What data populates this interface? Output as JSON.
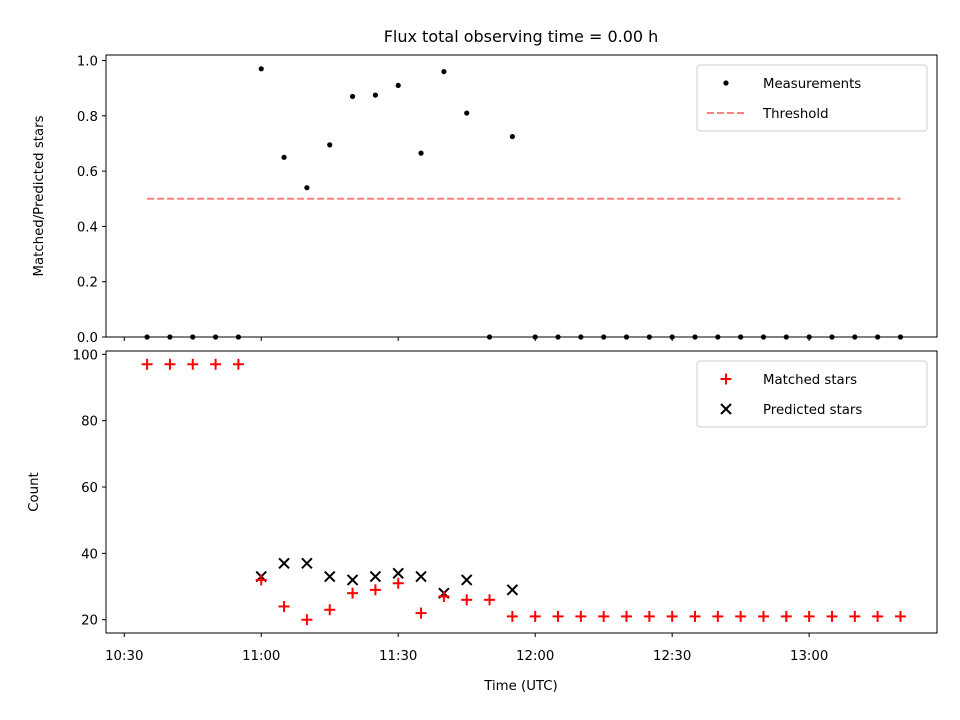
{
  "chart_data": {
    "title": "Flux total observing time = 0.00 h",
    "xlabel": "Time (UTC)",
    "xticks": [
      "10:30",
      "11:00",
      "11:30",
      "12:00",
      "12:30",
      "13:00"
    ],
    "x": [
      "10:35",
      "10:40",
      "10:45",
      "10:50",
      "10:55",
      "11:00",
      "11:05",
      "11:10",
      "11:15",
      "11:20",
      "11:25",
      "11:30",
      "11:35",
      "11:40",
      "11:45",
      "11:50",
      "11:55",
      "12:00",
      "12:05",
      "12:10",
      "12:15",
      "12:20",
      "12:25",
      "12:30",
      "12:35",
      "12:40",
      "12:45",
      "12:50",
      "12:55",
      "13:00",
      "13:05",
      "13:10",
      "13:15",
      "13:20"
    ],
    "xlim": [
      "10:26",
      "13:28"
    ],
    "panels": [
      {
        "type": "scatter",
        "ylabel": "Matched/Predicted stars",
        "ylim": [
          0,
          1.02
        ],
        "yticks": [
          "0.0",
          "0.2",
          "0.4",
          "0.6",
          "0.8",
          "1.0"
        ],
        "legend_position": "top-right",
        "series": [
          {
            "name": "Measurements",
            "marker": "dot",
            "color": "#000000",
            "values": [
              0,
              0,
              0,
              0,
              0,
              0.97,
              0.65,
              0.54,
              0.695,
              0.87,
              0.875,
              0.91,
              0.665,
              0.96,
              0.81,
              0,
              0.725,
              0,
              0,
              0,
              0,
              0,
              0,
              0,
              0,
              0,
              0,
              0,
              0,
              0,
              0,
              0,
              0,
              0
            ]
          },
          {
            "name": "Threshold",
            "style": "dashed",
            "color": "#ff7f7f",
            "x_range": [
              "10:35",
              "13:20"
            ],
            "value": 0.5
          }
        ]
      },
      {
        "type": "scatter",
        "ylabel": "Count",
        "ylim": [
          16,
          101
        ],
        "yticks": [
          "20",
          "40",
          "60",
          "80",
          "100"
        ],
        "legend_position": "top-right",
        "series": [
          {
            "name": "Matched stars",
            "marker": "plus",
            "color": "#ff0000",
            "values": [
              97,
              97,
              97,
              97,
              97,
              32,
              24,
              20,
              23,
              28,
              29,
              31,
              22,
              27,
              26,
              26,
              21,
              21,
              21,
              21,
              21,
              21,
              21,
              21,
              21,
              21,
              21,
              21,
              21,
              21,
              21,
              21,
              21,
              21
            ]
          },
          {
            "name": "Predicted stars",
            "marker": "x",
            "color": "#000000",
            "values": [
              null,
              null,
              null,
              null,
              null,
              33,
              37,
              37,
              33,
              32,
              33,
              34,
              33,
              28,
              32,
              null,
              29,
              null,
              null,
              null,
              null,
              null,
              null,
              null,
              null,
              null,
              null,
              null,
              null,
              null,
              null,
              null,
              null,
              null
            ]
          }
        ]
      }
    ]
  }
}
